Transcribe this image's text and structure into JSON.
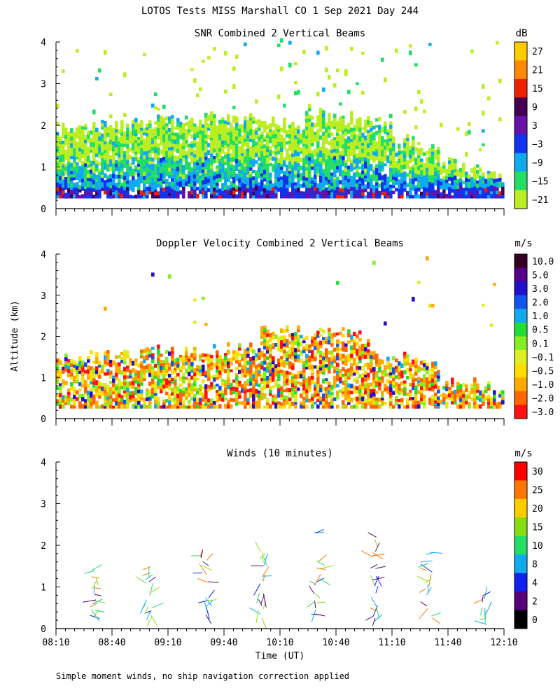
{
  "title": "LOTOS Tests MISS Marshall CO   1 Sep 2021 Day 244",
  "ylabel": "Altitude (km)",
  "xlabel": "Time (UT)",
  "footnote": "Simple moment winds, no ship navigation correction applied",
  "x_ticks": [
    "08:10",
    "08:40",
    "09:10",
    "09:40",
    "10:10",
    "10:40",
    "11:10",
    "11:40",
    "12:10"
  ],
  "y_ticks": [
    "0",
    "1",
    "2",
    "3",
    "4"
  ],
  "chart_data": [
    {
      "type": "heatmap",
      "title": "SNR Combined 2 Vertical Beams",
      "units": "dB",
      "xlim": [
        "08:10",
        "12:10"
      ],
      "ylim": [
        0,
        4
      ],
      "colorbar": {
        "labels": [
          "27",
          "21",
          "15",
          "9",
          "3",
          "−3",
          "−9",
          "−15",
          "−21"
        ],
        "colors": [
          "#ffcc00",
          "#ff8800",
          "#ee2200",
          "#440055",
          "#6611aa",
          "#1133ee",
          "#11aaee",
          "#22dd66",
          "#bbee22"
        ]
      }
    },
    {
      "type": "heatmap",
      "title": "Doppler Velocity Combined 2 Vertical Beams",
      "units": "m/s",
      "xlim": [
        "08:10",
        "12:10"
      ],
      "ylim": [
        0,
        4
      ],
      "colorbar": {
        "labels": [
          "10.0",
          "5.0",
          "3.0",
          "2.0",
          "1.0",
          "0.5",
          "0.1",
          "−0.1",
          "−0.5",
          "−1.0",
          "−2.0",
          "−3.0"
        ],
        "colors": [
          "#330022",
          "#550088",
          "#2211cc",
          "#1155ee",
          "#11aaee",
          "#22dd33",
          "#88ee22",
          "#ddee22",
          "#ffdd00",
          "#ffaa00",
          "#ff6600",
          "#ff1111"
        ]
      }
    },
    {
      "type": "scatter",
      "title": "Winds (10 minutes)",
      "units": "m/s",
      "xlim": [
        "08:10",
        "12:10"
      ],
      "ylim": [
        0,
        4
      ],
      "colorbar": {
        "labels": [
          "30",
          "25",
          "20",
          "15",
          "10",
          "8",
          "4",
          "2",
          "0"
        ],
        "colors": [
          "#ff0000",
          "#ff7700",
          "#ffcc00",
          "#88dd11",
          "#22dd66",
          "#11aaee",
          "#1122ee",
          "#550077",
          "#000000"
        ]
      },
      "profiles": [
        {
          "time": "08:30",
          "heights": [
            0.3,
            0.45,
            0.55,
            0.65,
            0.8,
            1.0,
            1.2,
            1.35
          ]
        },
        {
          "time": "09:00",
          "heights": [
            0.3,
            0.45,
            0.55,
            0.65,
            0.8,
            1.1,
            1.3,
            1.5
          ]
        },
        {
          "time": "09:30",
          "heights": [
            0.3,
            0.5,
            0.65,
            0.8,
            1.1,
            1.3,
            1.55,
            1.7,
            1.9
          ]
        },
        {
          "time": "10:00",
          "heights": [
            0.3,
            0.45,
            0.6,
            0.8,
            1.1,
            1.3,
            1.5,
            1.7,
            1.85
          ]
        },
        {
          "time": "10:30",
          "heights": [
            0.3,
            0.45,
            0.6,
            0.8,
            1.0,
            1.15,
            1.4,
            1.6,
            2.3
          ]
        },
        {
          "time": "11:00",
          "heights": [
            0.2,
            0.35,
            0.55,
            0.8,
            1.0,
            1.2,
            1.5,
            1.7,
            1.85,
            2.2
          ]
        },
        {
          "time": "11:30",
          "heights": [
            0.3,
            0.5,
            0.8,
            1.0,
            1.2,
            1.4,
            1.6,
            1.8
          ]
        },
        {
          "time": "12:00",
          "heights": [
            0.1,
            0.3,
            0.5,
            0.7,
            0.8
          ]
        }
      ]
    }
  ]
}
